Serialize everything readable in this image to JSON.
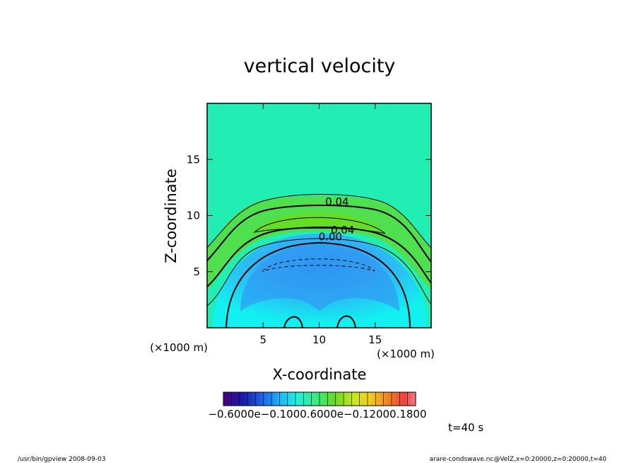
{
  "chart_data": {
    "type": "contour",
    "title": "vertical velocity",
    "xlabel": "X-coordinate",
    "ylabel": "Z-coordinate",
    "x_unit": "(×1000 m)",
    "y_unit": "(×1000 m)",
    "xlim": [
      0,
      20
    ],
    "ylim": [
      0,
      20
    ],
    "x_ticks": [
      "5",
      "10",
      "15"
    ],
    "y_ticks": [
      "5",
      "10",
      "15"
    ],
    "x_tick_values": [
      5,
      10,
      15
    ],
    "y_tick_values": [
      5,
      10,
      15
    ],
    "contour_labels": [
      {
        "text": "0.04",
        "x": 11.6,
        "z": 10.9
      },
      {
        "text": "0.04",
        "x": 12.1,
        "z": 8.4
      },
      {
        "text": "0.00",
        "x": 11.0,
        "z": 7.8
      }
    ],
    "colorbar": {
      "labels_text": "−0.6000e−0.1000.6000e−0.12000.1800",
      "range": [
        -0.06,
        0.18
      ]
    },
    "time_label": "t=40 s"
  },
  "footer": {
    "left": "/usr/bin/gpview   2008-09-03",
    "right": "arare-condswave.nc@VelZ,x=0:20000,z=0:20000,t=40"
  }
}
